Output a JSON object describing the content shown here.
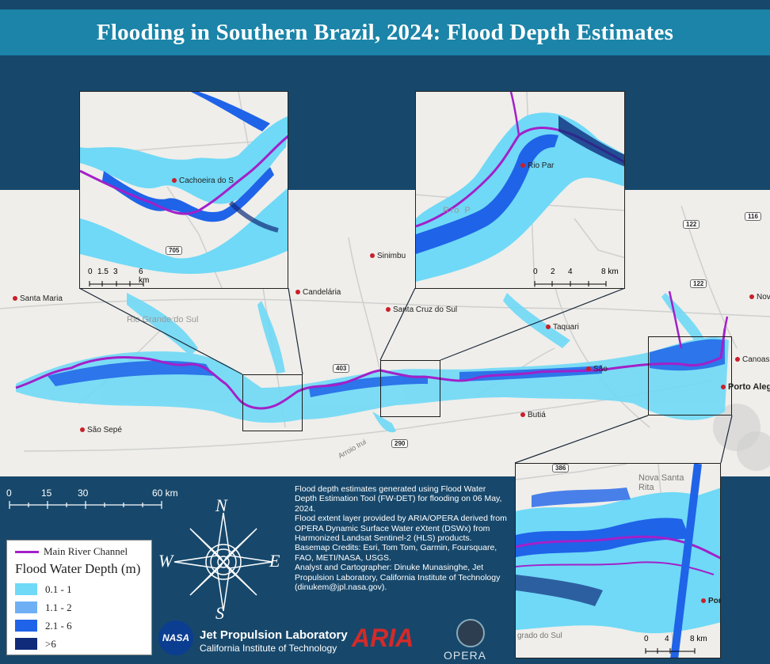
{
  "title": "Flooding in Southern Brazil, 2024: Flood Depth Estimates",
  "colors": {
    "background": "#17486b",
    "title_bar": "#1b84a8",
    "river": "#a320c9",
    "depth_1": "#6fd9f7",
    "depth_2": "#6fb0f5",
    "depth_3": "#1f63e8",
    "depth_4": "#0f2b7a"
  },
  "places": {
    "santa_maria": "Santa Maria",
    "sao_sepe": "São Sepé",
    "candelaria": "Candelária",
    "sinimbu": "Sinimbu",
    "santa_cruz": "Santa Cruz do Sul",
    "taquari": "Taquari",
    "butia": "Butiá",
    "canoas": "Canoas",
    "porto_alegre": "Porto Alegre",
    "novo": "Novo",
    "sao": "São",
    "rio_pardo": "Rio Par",
    "rio_grande": "Rio Grande do Sul",
    "arroio": "Arroio Irui",
    "rio_p": "Rio P",
    "cachoeira": "Cachoeira do S",
    "nova_santa_rita": "Nova Santa Rita",
    "porto": "Porto",
    "grado_do_sul": "grado do Sul"
  },
  "roads": {
    "r403": "403",
    "r290": "290",
    "r122a": "122",
    "r122b": "122",
    "r116": "116",
    "r705": "705",
    "r386": "386"
  },
  "main_scale": {
    "labels": [
      "0",
      "15",
      "30",
      "60 km"
    ]
  },
  "inset1_scale": {
    "labels": [
      "0",
      "1.5",
      "3",
      "6 km"
    ]
  },
  "inset2_scale": {
    "labels": [
      "0",
      "2",
      "4",
      "8 km"
    ]
  },
  "inset3_scale": {
    "labels": [
      "0",
      "4",
      "8 km"
    ]
  },
  "compass": {
    "n": "N",
    "s": "S",
    "e": "E",
    "w": "W"
  },
  "legend": {
    "river_label": "Main River Channel",
    "title": "Flood Water Depth (m)",
    "classes": [
      "0.1 - 1",
      "1.1 - 2",
      "2.1 - 6",
      ">6"
    ]
  },
  "credits": {
    "p1": "Flood depth estimates generated using Flood Water Depth Estimation Tool (FW-DET) for flooding on 06 May, 2024.",
    "p2": "Flood extent layer provided by ARIA/OPERA derived from OPERA Dynamic Surface Water eXtent (DSWx) from Harmonized Landsat Sentinel-2 (HLS) products.",
    "p3": "Basemap Credits: Esri, Tom Tom, Garmin, Foursquare, FAO, METI/NASA, USGS.",
    "p4": "Analyst and Cartographer: Dinuke Munasinghe, Jet Propulsion Laboratory, California Institute of Technology (dinukem@jpl.nasa.gov)."
  },
  "logos": {
    "nasa": "NASA",
    "jpl_name": "Jet Propulsion Laboratory",
    "jpl_sub": "California Institute of Technology",
    "aria": "ARIA",
    "opera": "OPERA"
  }
}
